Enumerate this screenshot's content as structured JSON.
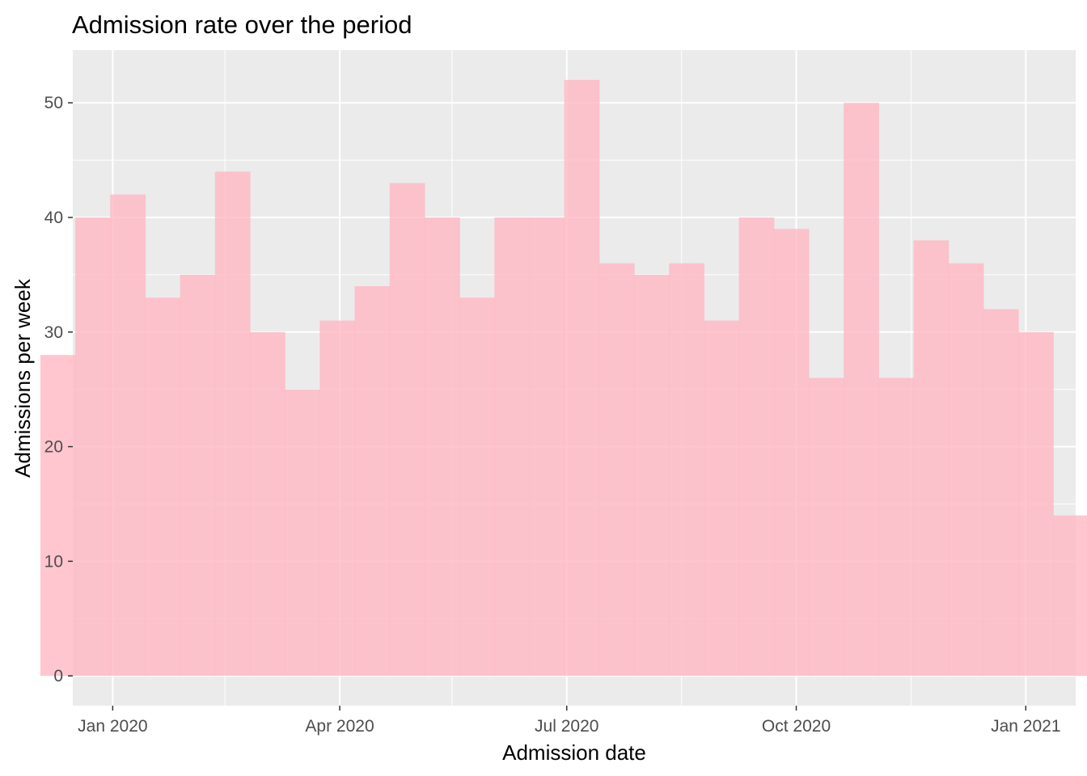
{
  "chart_data": {
    "type": "bar",
    "title": "Admission rate over the period",
    "xlabel": "Admission date",
    "ylabel": "Admissions per week",
    "bar_color": "#ffb6c1",
    "panel_background": "#ebebeb",
    "grid_color": "#ffffff",
    "grid": true,
    "legend": "none",
    "ylim": [
      -2.6,
      54.6
    ],
    "y_ticks": [
      0,
      10,
      20,
      30,
      40,
      50
    ],
    "xlim": [
      "2019-12-16",
      "2021-01-21"
    ],
    "x_ticks": [
      {
        "label": "Jan 2020",
        "date": "2020-01-01"
      },
      {
        "label": "Apr 2020",
        "date": "2020-04-01"
      },
      {
        "label": "Jul 2020",
        "date": "2020-07-01"
      },
      {
        "label": "Oct 2020",
        "date": "2020-10-01"
      },
      {
        "label": "Jan 2021",
        "date": "2021-01-01"
      }
    ],
    "x_minor_ticks": [
      "2020-02-15",
      "2020-05-16",
      "2020-08-16",
      "2020-11-16"
    ],
    "bin_width_days": 14,
    "bins": [
      {
        "start": "2019-12-28",
        "value": 28
      },
      {
        "start": "2020-01-11",
        "value": 40
      },
      {
        "start": "2020-01-25",
        "value": 42
      },
      {
        "start": "2020-02-08",
        "value": 33
      },
      {
        "start": "2020-02-22",
        "value": 35
      },
      {
        "start": "2020-03-07",
        "value": 44
      },
      {
        "start": "2020-03-21",
        "value": 30
      },
      {
        "start": "2020-04-04",
        "value": 25
      },
      {
        "start": "2020-04-18",
        "value": 31
      },
      {
        "start": "2020-05-02",
        "value": 34
      },
      {
        "start": "2020-05-16",
        "value": 43
      },
      {
        "start": "2020-05-30",
        "value": 40
      },
      {
        "start": "2020-06-13",
        "value": 33
      },
      {
        "start": "2020-06-27",
        "value": 40
      },
      {
        "start": "2020-07-11",
        "value": 40
      },
      {
        "start": "2020-07-25",
        "value": 52
      },
      {
        "start": "2020-08-08",
        "value": 36
      },
      {
        "start": "2020-08-22",
        "value": 35
      },
      {
        "start": "2020-09-05",
        "value": 36
      },
      {
        "start": "2020-09-19",
        "value": 31
      },
      {
        "start": "2020-10-03",
        "value": 40
      },
      {
        "start": "2020-10-17",
        "value": 39
      },
      {
        "start": "2020-10-31",
        "value": 26
      },
      {
        "start": "2020-11-14",
        "value": 50
      },
      {
        "start": "2020-11-28",
        "value": 26
      },
      {
        "start": "2020-12-12",
        "value": 38
      },
      {
        "start": "2020-12-26",
        "value": 36
      },
      {
        "start": "2021-01-09",
        "value": 32
      },
      {
        "start": "2021-01-23",
        "value": 30
      },
      {
        "start": "2021-02-06",
        "value": 14
      }
    ]
  }
}
